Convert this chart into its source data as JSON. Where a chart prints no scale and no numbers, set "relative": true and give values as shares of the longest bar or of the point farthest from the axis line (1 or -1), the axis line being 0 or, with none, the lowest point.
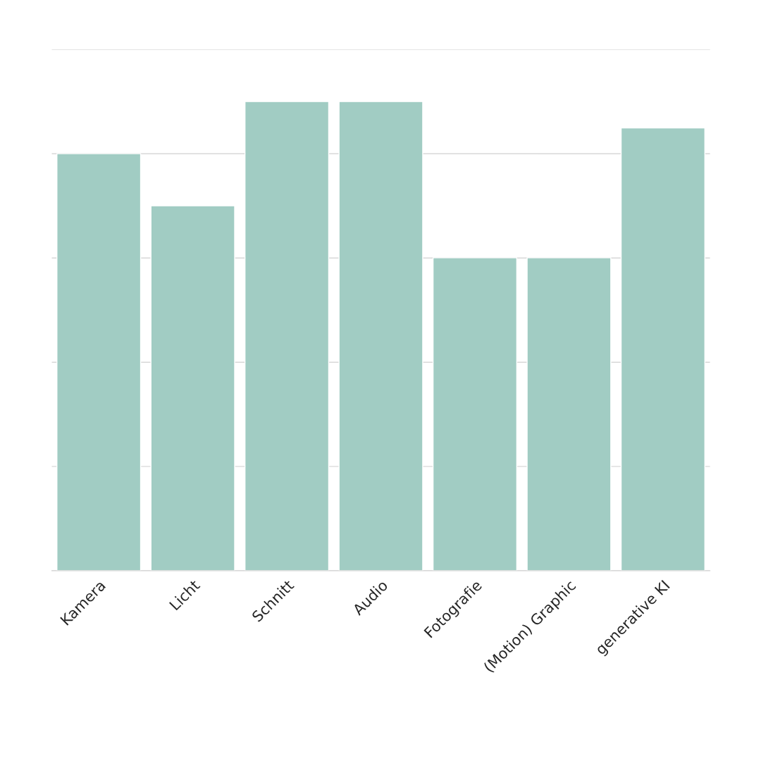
{
  "chart_data": {
    "type": "bar",
    "relative": true,
    "categories": [
      "Kamera",
      "Licht",
      "Schnitt",
      "Audio",
      "Fotografie",
      "(Motion) Graphic",
      "generative KI"
    ],
    "values": [
      0.889,
      0.778,
      1,
      1,
      0.667,
      0.667,
      0.944
    ],
    "color": "#a1ccc3",
    "grid": "y"
  }
}
